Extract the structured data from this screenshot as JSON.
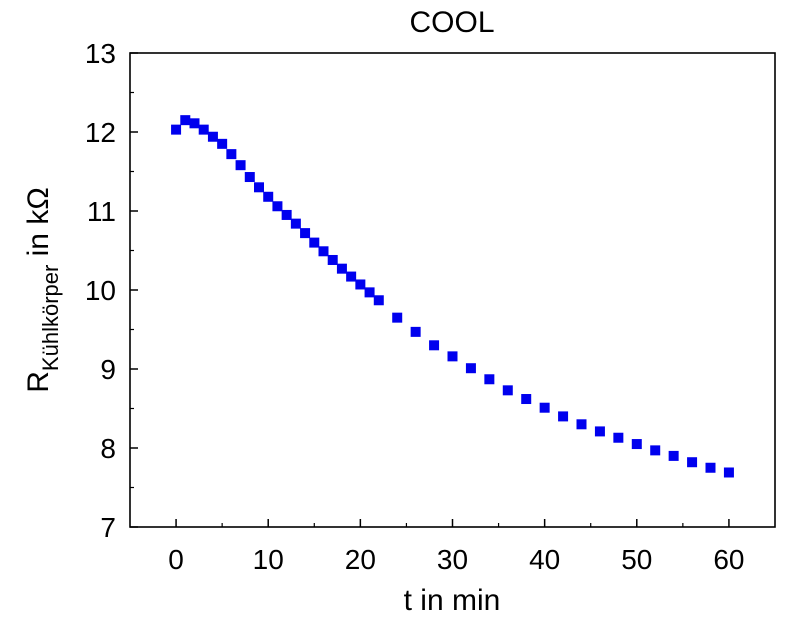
{
  "chart_data": {
    "type": "scatter",
    "title": "COOL",
    "xlabel": "t in min",
    "ylabel": {
      "main": "R",
      "subscript": "Kühlkörper",
      "suffix": " in kΩ"
    },
    "xlim": [
      -5,
      65
    ],
    "ylim": [
      7,
      13
    ],
    "xticks": [
      0,
      10,
      20,
      30,
      40,
      50,
      60
    ],
    "yticks": [
      7,
      8,
      9,
      10,
      11,
      12,
      13
    ],
    "grid": false,
    "marker": "square",
    "series": [
      {
        "color": "#0000ee",
        "points": [
          [
            0,
            12.03
          ],
          [
            1,
            12.15
          ],
          [
            2,
            12.11
          ],
          [
            3,
            12.03
          ],
          [
            4,
            11.94
          ],
          [
            5,
            11.85
          ],
          [
            6,
            11.72
          ],
          [
            7,
            11.58
          ],
          [
            8,
            11.43
          ],
          [
            9,
            11.3
          ],
          [
            10,
            11.18
          ],
          [
            11,
            11.06
          ],
          [
            12,
            10.95
          ],
          [
            13,
            10.84
          ],
          [
            14,
            10.72
          ],
          [
            15,
            10.6
          ],
          [
            16,
            10.49
          ],
          [
            17,
            10.38
          ],
          [
            18,
            10.27
          ],
          [
            19,
            10.17
          ],
          [
            20,
            10.07
          ],
          [
            21,
            9.97
          ],
          [
            22,
            9.87
          ],
          [
            24,
            9.65
          ],
          [
            26,
            9.47
          ],
          [
            28,
            9.3
          ],
          [
            30,
            9.16
          ],
          [
            32,
            9.01
          ],
          [
            34,
            8.87
          ],
          [
            36,
            8.73
          ],
          [
            38,
            8.62
          ],
          [
            40,
            8.51
          ],
          [
            42,
            8.4
          ],
          [
            44,
            8.3
          ],
          [
            46,
            8.21
          ],
          [
            48,
            8.13
          ],
          [
            50,
            8.05
          ],
          [
            52,
            7.97
          ],
          [
            54,
            7.9
          ],
          [
            56,
            7.82
          ],
          [
            58,
            7.75
          ],
          [
            60,
            7.69
          ]
        ]
      }
    ]
  }
}
